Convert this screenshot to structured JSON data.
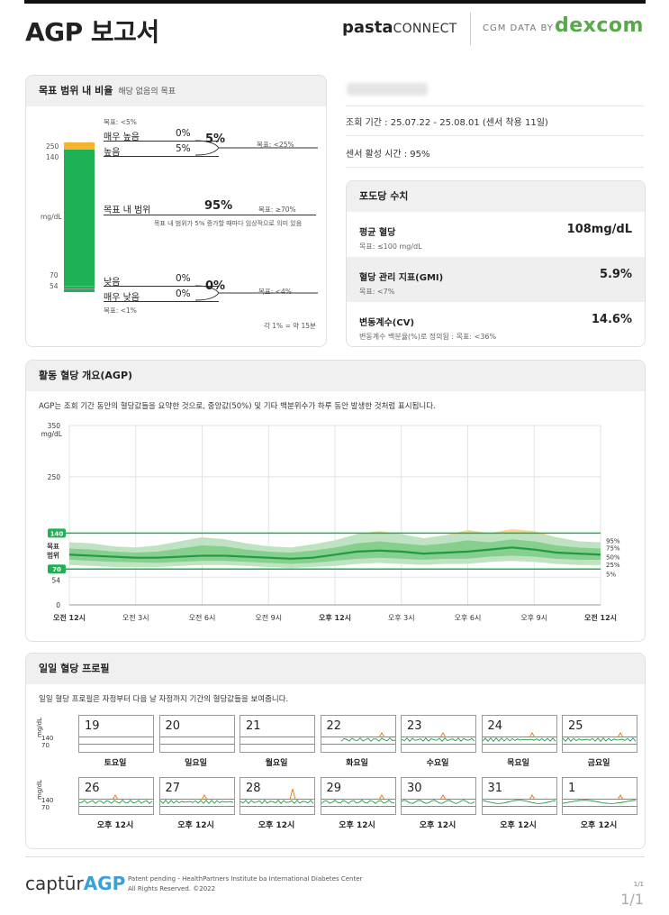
{
  "header": {
    "title": "AGP 보고서",
    "brand_bold": "pasta",
    "brand_rest": "CONNECT",
    "cgm": "CGM DATA BY",
    "dexcom": "DEXCOM",
    "brand_color": "#59a94a"
  },
  "tir": {
    "heading": "목표 범위 내 비율",
    "subheading": "해당 없음의 목표",
    "unit": "mg/dL",
    "thresholds": [
      "250",
      "140",
      "70",
      "54"
    ],
    "very_high": {
      "goal": "목표: <5%",
      "label": "매우 높음",
      "value": "0%"
    },
    "high": {
      "label": "높음",
      "value": "5%"
    },
    "high_total": "5%",
    "high_goal": "목표: <25%",
    "in_range": {
      "label": "목표 내 범위",
      "value": "95%",
      "goal": "목표: ≥70%",
      "note": "목표 내 범위가 5% 증가할 때마다 임상적으로 의미 있음"
    },
    "low": {
      "label": "낮음",
      "value": "0%"
    },
    "very_low": {
      "label": "매우 낮음",
      "value": "0%",
      "goal": "목표: <1%"
    },
    "low_total": "0%",
    "low_goal": "목표: <4%",
    "per_pct": "각 1% = 약 15분",
    "bar": {
      "very_high": 0,
      "high": 5,
      "in_range": 95,
      "low": 0,
      "very_low": 0
    },
    "colors": {
      "very_high": "#e87a1e",
      "high": "#f5b330",
      "in_range": "#1fb155",
      "low": "#e53935",
      "very_low": "#8b1a1a"
    }
  },
  "info": {
    "period": "조회 기간 : 25.07.22 - 25.08.01 (센서 착용 11일)",
    "active": "센서 활성 시간 : 95%"
  },
  "glucose": {
    "heading": "포도당 수치",
    "rows": [
      {
        "label": "평균 혈당",
        "target": "목표: ≤100 mg/dL",
        "value": "108mg/dL"
      },
      {
        "label": "혈당 관리 지표(GMI)",
        "target": "목표: <7%",
        "value": "5.9%"
      },
      {
        "label": "변동계수(CV)",
        "target": "변동계수 백분율(%)로 정의됨 : 목표: <36%",
        "value": "14.6%"
      }
    ]
  },
  "agp": {
    "heading": "활동 혈당 개요(AGP)",
    "description": "AGP는 조회 기간 동안의 혈당값들을 요약한 것으로, 중앙값(50%) 및 기타 백분위수가 하루 동안 발생한 것처럼 표시됩니다.",
    "y_top": "350",
    "y_unit": "mg/dL",
    "y_ticks": [
      "250",
      "140",
      "70",
      "54",
      "0"
    ],
    "range_label_1": "목표",
    "range_label_2": "범위",
    "x_labels": [
      "오전 12시",
      "오전 3시",
      "오전 6시",
      "오전 9시",
      "오후 12시",
      "오후 3시",
      "오후 6시",
      "오후 9시",
      "오전 12시"
    ],
    "percentile_labels": [
      "95%",
      "75%",
      "50%",
      "25%",
      "5%"
    ]
  },
  "chart_data": {
    "type": "area",
    "ylim": [
      0,
      350
    ],
    "target_range": [
      70,
      140
    ],
    "x_hours": [
      0,
      1,
      2,
      3,
      4,
      5,
      6,
      7,
      8,
      9,
      10,
      11,
      12,
      13,
      14,
      15,
      16,
      17,
      18,
      19,
      20,
      21,
      22,
      23,
      24
    ],
    "series": [
      {
        "name": "95%",
        "values": [
          122,
          120,
          114,
          112,
          116,
          124,
          132,
          128,
          120,
          114,
          112,
          118,
          126,
          138,
          144,
          138,
          130,
          136,
          146,
          140,
          148,
          144,
          132,
          124,
          122
        ]
      },
      {
        "name": "75%",
        "values": [
          110,
          108,
          104,
          102,
          104,
          110,
          116,
          114,
          108,
          104,
          102,
          106,
          112,
          120,
          124,
          120,
          116,
          120,
          126,
          122,
          128,
          124,
          116,
          112,
          110
        ]
      },
      {
        "name": "50%",
        "values": [
          98,
          96,
          94,
          92,
          92,
          94,
          96,
          96,
          94,
          92,
          90,
          92,
          98,
          104,
          106,
          104,
          100,
          102,
          104,
          108,
          112,
          108,
          102,
          100,
          98
        ]
      },
      {
        "name": "25%",
        "values": [
          88,
          86,
          84,
          83,
          82,
          84,
          86,
          86,
          84,
          82,
          80,
          82,
          86,
          90,
          92,
          90,
          88,
          90,
          90,
          94,
          96,
          94,
          90,
          88,
          88
        ]
      },
      {
        "name": "5%",
        "values": [
          78,
          76,
          74,
          74,
          74,
          76,
          78,
          78,
          76,
          74,
          72,
          74,
          76,
          80,
          82,
          80,
          78,
          80,
          80,
          84,
          86,
          84,
          80,
          78,
          78
        ]
      }
    ]
  },
  "daily": {
    "heading": "일일 혈당 프로필",
    "description": "일일 혈당 프로필은 자정부터 다음 날 자정까지 기간의 혈당값들을 보여줍니다.",
    "y_unit": "mg/dL",
    "y_ticks": [
      "140",
      "70"
    ],
    "row1": [
      {
        "day": "19",
        "label": "토요일",
        "data": false
      },
      {
        "day": "20",
        "label": "일요일",
        "data": false
      },
      {
        "day": "21",
        "label": "월요일",
        "data": false
      },
      {
        "day": "22",
        "label": "화요일",
        "data": true
      },
      {
        "day": "23",
        "label": "수요일",
        "data": true
      },
      {
        "day": "24",
        "label": "목요일",
        "data": true
      },
      {
        "day": "25",
        "label": "금요일",
        "data": true
      }
    ],
    "row2": [
      {
        "day": "26",
        "label": "오후 12시",
        "data": true
      },
      {
        "day": "27",
        "label": "오후 12시",
        "data": true
      },
      {
        "day": "28",
        "label": "오후 12시",
        "data": true
      },
      {
        "day": "29",
        "label": "오후 12시",
        "data": true
      },
      {
        "day": "30",
        "label": "오후 12시",
        "data": true
      },
      {
        "day": "31",
        "label": "오후 12시",
        "data": true
      },
      {
        "day": "1",
        "label": "오후 12시",
        "data": true
      }
    ]
  },
  "footer": {
    "logo_a": "captūr",
    "logo_b": "AGP",
    "line1": "Patent pending - HealthPartners Institute ba International Diabetes Center",
    "line2": "All Rights Reserved. ©2022",
    "page_small": "1/1",
    "page_big": "1/1"
  }
}
